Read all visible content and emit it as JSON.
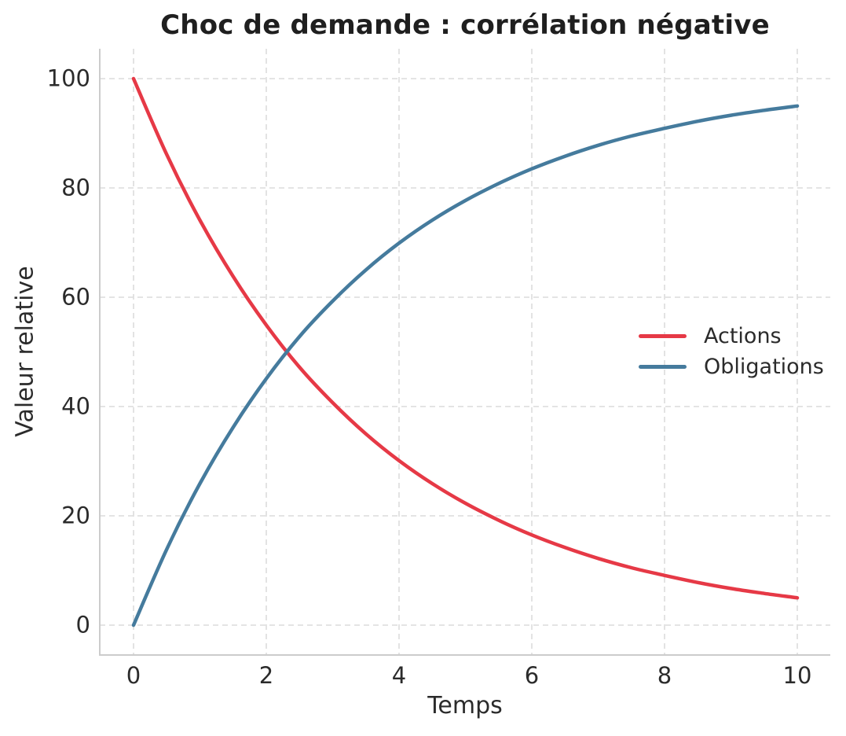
{
  "chart_data": {
    "type": "line",
    "title": "Choc de demande : corrélation négative",
    "xlabel": "Temps",
    "ylabel": "Valeur relative",
    "x": [
      0,
      0.5,
      1,
      1.5,
      2,
      2.5,
      3,
      3.5,
      4,
      4.5,
      5,
      5.5,
      6,
      6.5,
      7,
      7.5,
      8,
      8.5,
      9,
      9.5,
      10
    ],
    "series": [
      {
        "name": "Actions",
        "color": "#e63946",
        "values": [
          100,
          86.1,
          74.1,
          63.8,
          54.9,
          47.2,
          40.7,
          35.0,
          30.1,
          25.9,
          22.3,
          19.2,
          16.5,
          14.2,
          12.2,
          10.5,
          9.1,
          7.8,
          6.7,
          5.8,
          5.0
        ]
      },
      {
        "name": "Obligations",
        "color": "#457b9d",
        "values": [
          0,
          13.9,
          25.9,
          36.2,
          45.1,
          52.8,
          59.3,
          65.0,
          69.9,
          74.1,
          77.7,
          80.8,
          83.5,
          85.8,
          87.8,
          89.5,
          90.9,
          92.2,
          93.3,
          94.2,
          95.0
        ]
      }
    ],
    "x_ticks": [
      0,
      2,
      4,
      6,
      8,
      10
    ],
    "y_ticks": [
      0,
      20,
      40,
      60,
      80,
      100
    ],
    "xlim": [
      -0.5,
      10.5
    ],
    "ylim": [
      -5.5,
      105.5
    ],
    "grid": "dashed",
    "legend_position": "center-right",
    "colors": {
      "grid": "#dcdcdc",
      "spine": "#cccccc",
      "text": "#2b2b2b",
      "title": "#1f1f1f"
    }
  }
}
